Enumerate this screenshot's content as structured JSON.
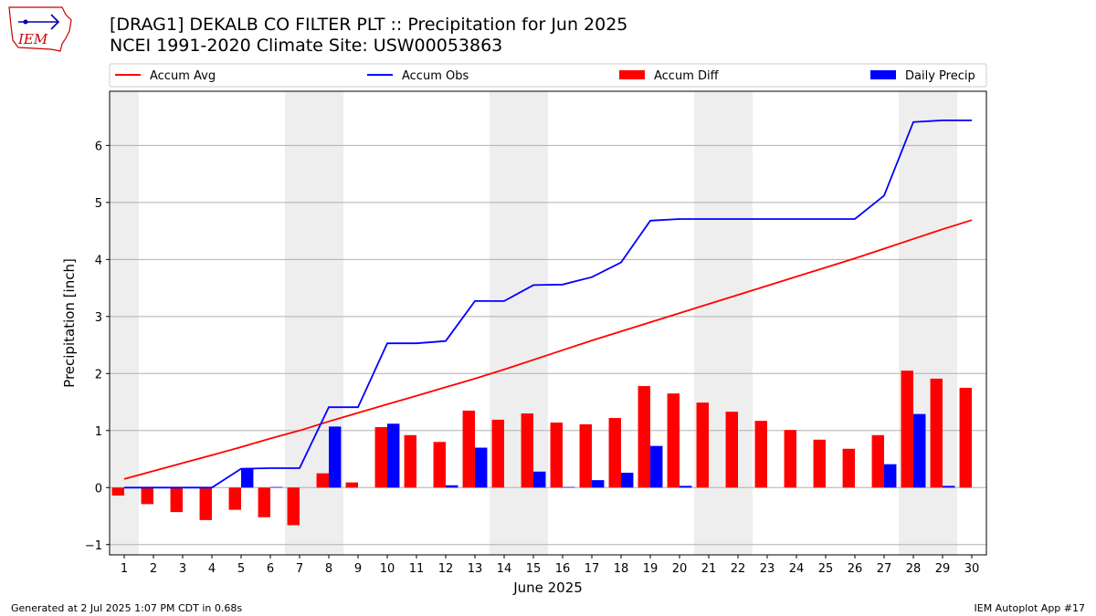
{
  "header": {
    "title_line1": "[DRAG1] DEKALB CO FILTER PLT :: Precipitation for Jun 2025",
    "title_line2": "NCEI 1991-2020 Climate Site: USW00053863",
    "logo_text": "IEM"
  },
  "footer": {
    "generated": "Generated at 2 Jul 2025 1:07 PM CDT in 0.68s",
    "app": "IEM Autoplot App #17"
  },
  "colors": {
    "accum_avg": "#ff0000",
    "accum_obs": "#0000ff",
    "accum_diff": "#ff0000",
    "daily_precip": "#0000ff",
    "weekend_shade": "#eeeeee",
    "grid": "#b0b0b0"
  },
  "chart_data": {
    "type": "bar",
    "xlabel": "June 2025",
    "ylabel": "Precipitation [inch]",
    "xlim": [
      0.5,
      30.5
    ],
    "ylim": [
      -1.18,
      6.95
    ],
    "yticks": [
      -1,
      0,
      1,
      2,
      3,
      4,
      5,
      6
    ],
    "grid": "horizontal",
    "legend_placement": "top",
    "weekend_days": [
      1,
      7,
      8,
      14,
      15,
      21,
      22,
      28,
      29
    ],
    "days": [
      1,
      2,
      3,
      4,
      5,
      6,
      7,
      8,
      9,
      10,
      11,
      12,
      13,
      14,
      15,
      16,
      17,
      18,
      19,
      20,
      21,
      22,
      23,
      24,
      25,
      26,
      27,
      28,
      29,
      30
    ],
    "series": [
      {
        "name": "Accum Avg",
        "type": "line",
        "values": [
          0.15,
          0.29,
          0.43,
          0.57,
          0.71,
          0.86,
          1.0,
          1.16,
          1.31,
          1.46,
          1.61,
          1.76,
          1.91,
          2.07,
          2.24,
          2.41,
          2.58,
          2.74,
          2.9,
          3.06,
          3.22,
          3.38,
          3.54,
          3.7,
          3.86,
          4.02,
          4.19,
          4.36,
          4.53,
          4.69
        ]
      },
      {
        "name": "Accum Obs",
        "type": "line",
        "values": [
          0,
          0,
          0,
          0,
          0.33,
          0.34,
          0.34,
          1.41,
          1.41,
          2.53,
          2.53,
          2.57,
          3.27,
          3.27,
          3.55,
          3.56,
          3.69,
          3.95,
          4.68,
          4.71,
          4.71,
          4.71,
          4.71,
          4.71,
          4.71,
          4.71,
          5.12,
          6.41,
          6.44,
          6.44
        ]
      },
      {
        "name": "Accum Diff",
        "type": "bar",
        "values": [
          -0.14,
          -0.29,
          -0.43,
          -0.57,
          -0.39,
          -0.52,
          -0.66,
          0.25,
          0.09,
          1.06,
          0.92,
          0.8,
          1.35,
          1.19,
          1.3,
          1.14,
          1.11,
          1.22,
          1.78,
          1.65,
          1.49,
          1.33,
          1.17,
          1.01,
          0.84,
          0.68,
          0.92,
          2.05,
          1.91,
          1.75
        ]
      },
      {
        "name": "Daily Precip",
        "type": "bar",
        "values": [
          0,
          0,
          0,
          0,
          0.33,
          0.01,
          0,
          1.07,
          0,
          1.12,
          0,
          0.04,
          0.7,
          0,
          0.28,
          0.01,
          0.13,
          0.26,
          0.73,
          0.03,
          0,
          0,
          0,
          0,
          0,
          0,
          0.41,
          1.29,
          0.03,
          0
        ]
      }
    ]
  }
}
